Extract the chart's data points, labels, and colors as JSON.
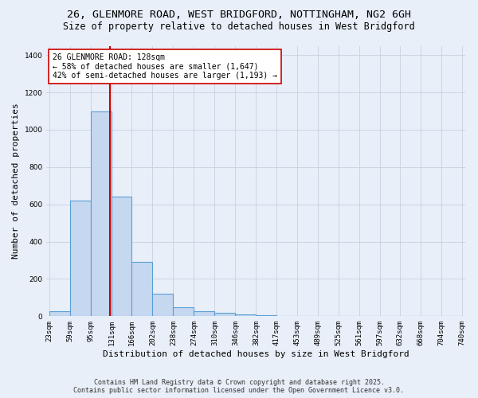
{
  "title_line1": "26, GLENMORE ROAD, WEST BRIDGFORD, NOTTINGHAM, NG2 6GH",
  "title_line2": "Size of property relative to detached houses in West Bridgford",
  "xlabel": "Distribution of detached houses by size in West Bridgford",
  "ylabel": "Number of detached properties",
  "bins": [
    23,
    59,
    95,
    131,
    166,
    202,
    238,
    274,
    310,
    346,
    382,
    417,
    453,
    489,
    525,
    561,
    597,
    632,
    668,
    704,
    740
  ],
  "bar_heights": [
    25,
    620,
    1100,
    640,
    290,
    120,
    50,
    25,
    20,
    10,
    5,
    0,
    0,
    0,
    0,
    0,
    0,
    0,
    0,
    0
  ],
  "bar_color": "#c5d8f0",
  "bar_edge_color": "#5a9fd4",
  "bg_color": "#e8eff8",
  "grid_color": "#c8d0e0",
  "red_line_x": 128,
  "red_line_color": "#cc0000",
  "annotation_text": "26 GLENMORE ROAD: 128sqm\n← 58% of detached houses are smaller (1,647)\n42% of semi-detached houses are larger (1,193) →",
  "annotation_box_color": "#ffffff",
  "annotation_box_edge": "#cc0000",
  "ylim": [
    0,
    1450
  ],
  "yticks": [
    0,
    200,
    400,
    600,
    800,
    1000,
    1200,
    1400
  ],
  "footnote_line1": "Contains HM Land Registry data © Crown copyright and database right 2025.",
  "footnote_line2": "Contains public sector information licensed under the Open Government Licence v3.0.",
  "title_fontsize": 9.5,
  "subtitle_fontsize": 8.5,
  "tick_fontsize": 6.5,
  "ylabel_fontsize": 8,
  "xlabel_fontsize": 8,
  "annotation_fontsize": 7,
  "footnote_fontsize": 6
}
